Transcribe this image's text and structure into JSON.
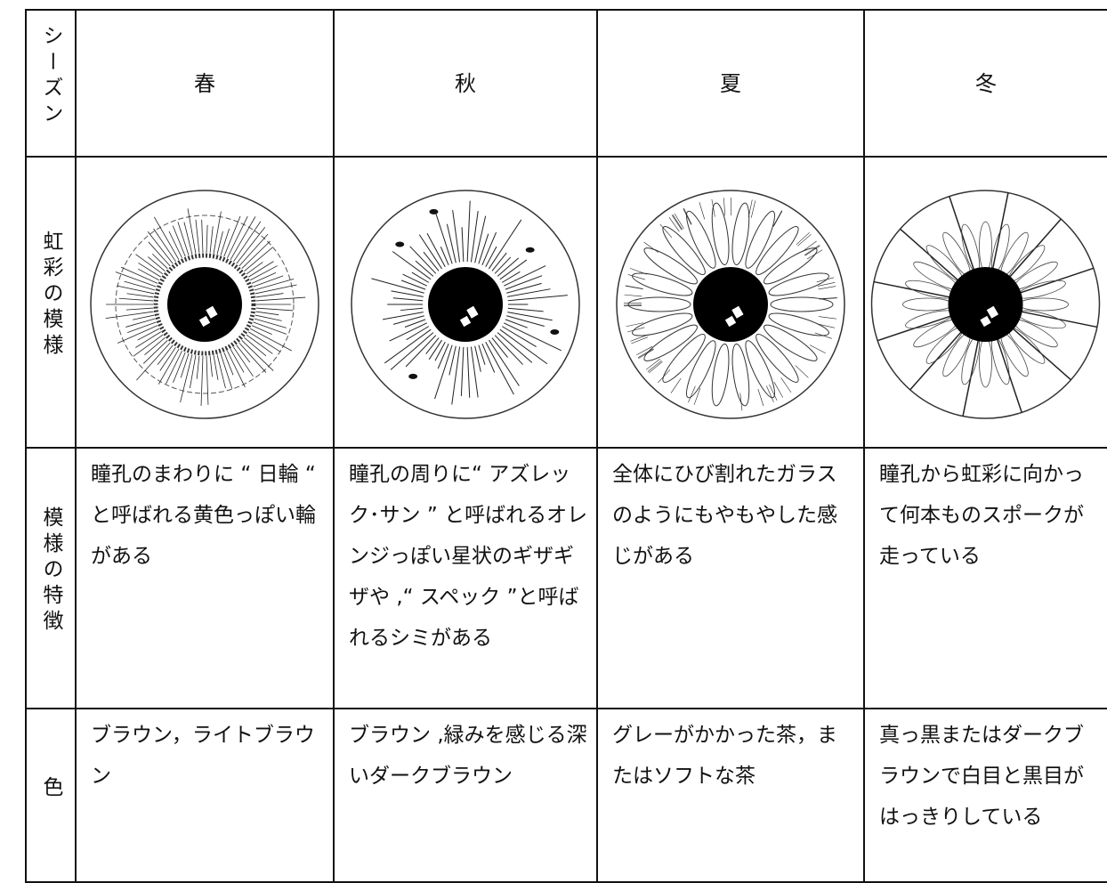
{
  "table": {
    "header": [
      "シーズン",
      "春",
      "秋",
      "夏",
      "冬"
    ],
    "rows": [
      [
        "虹彩の模様"
      ],
      [
        "模様の特徴",
        "瞳孔のまわりに “ 日輪 “ と呼ばれる黄色っぽい輪がある",
        "瞳孔の周りに“ アズレック･サン ” と呼ばれるオレンジっぽい星状のギザギザや ,“ スペック ”と呼ばれるシミがある",
        "全体にひび割れたガラスのようにもやもやした感じがある",
        "瞳孔から虹彩に向かって何本ものスポークが走っている"
      ],
      [
        "色",
        "ブラウン，ライトブラウン",
        "ブラウン ,緑みを感じる深いダークブラウン",
        "グレーがかかった茶，またはソフトな茶",
        "真っ黒またはダークブラウンで白目と黒目がはっきりしている"
      ]
    ]
  }
}
